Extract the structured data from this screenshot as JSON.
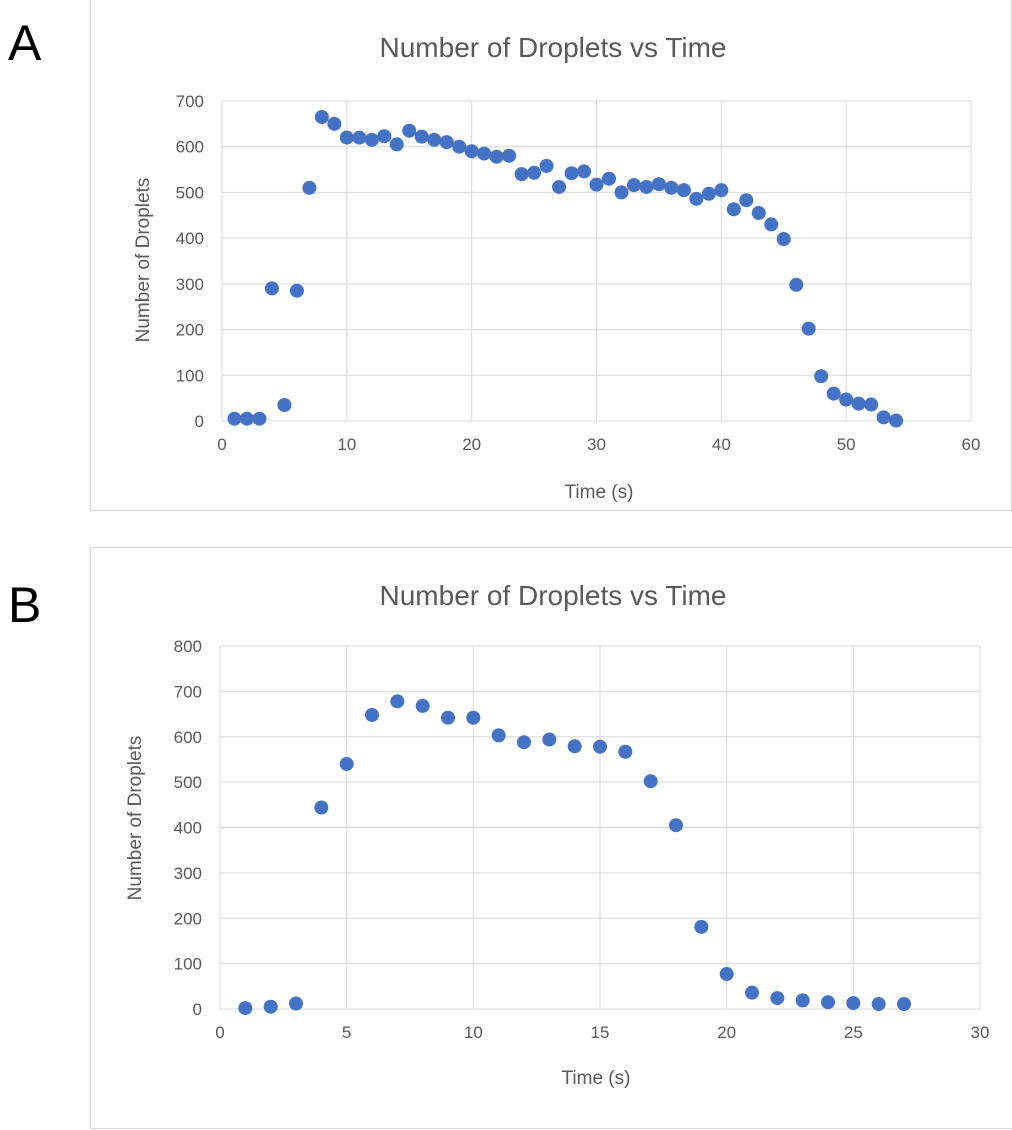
{
  "panels": {
    "a_label": "A",
    "b_label": "B"
  },
  "chart_data": [
    {
      "type": "scatter",
      "title": "Number of Droplets vs Time",
      "xlabel": "Time (s)",
      "ylabel": "Number of Droplets",
      "xlim": [
        0,
        60
      ],
      "ylim": [
        0,
        700
      ],
      "xticks": [
        0,
        10,
        20,
        30,
        40,
        50,
        60
      ],
      "yticks": [
        0,
        100,
        200,
        300,
        400,
        500,
        600,
        700
      ],
      "grid": true,
      "color": "#4472c4",
      "series": [
        {
          "x": [
            1,
            2,
            3,
            4,
            5,
            6,
            7,
            8,
            9,
            10,
            11,
            12,
            13,
            14,
            15,
            16,
            17,
            18,
            19,
            20,
            21,
            22,
            23,
            24,
            25,
            26,
            27,
            28,
            29,
            30,
            31,
            32,
            33,
            34,
            35,
            36,
            37,
            38,
            39,
            40,
            41,
            42,
            43,
            44,
            45,
            46,
            47,
            48,
            49,
            50,
            51,
            52,
            53,
            54
          ],
          "y": [
            5,
            5,
            5,
            290,
            35,
            285,
            510,
            665,
            650,
            620,
            620,
            615,
            623,
            605,
            635,
            622,
            615,
            610,
            600,
            590,
            585,
            578,
            580,
            540,
            543,
            558,
            512,
            542,
            546,
            517,
            530,
            500,
            516,
            512,
            518,
            510,
            505,
            486,
            497,
            505,
            463,
            483,
            455,
            430,
            398,
            298,
            202,
            98,
            60,
            47,
            38,
            36,
            8,
            1
          ]
        }
      ]
    },
    {
      "type": "scatter",
      "title": "Number of Droplets vs Time",
      "xlabel": "Time (s)",
      "ylabel": "Number of Droplets",
      "xlim": [
        0,
        30
      ],
      "ylim": [
        0,
        800
      ],
      "xticks": [
        0,
        5,
        10,
        15,
        20,
        25,
        30
      ],
      "yticks": [
        0,
        100,
        200,
        300,
        400,
        500,
        600,
        700,
        800
      ],
      "grid": true,
      "color": "#4472c4",
      "series": [
        {
          "x": [
            1,
            2,
            3,
            4,
            5,
            6,
            7,
            8,
            9,
            10,
            11,
            12,
            13,
            14,
            15,
            16,
            17,
            18,
            19,
            20,
            21,
            22,
            23,
            24,
            25,
            26,
            27
          ],
          "y": [
            2,
            5,
            12,
            444,
            540,
            648,
            678,
            668,
            642,
            642,
            603,
            588,
            594,
            579,
            578,
            567,
            502,
            405,
            181,
            77,
            36,
            24,
            19,
            15,
            13,
            11,
            11
          ]
        }
      ]
    }
  ]
}
